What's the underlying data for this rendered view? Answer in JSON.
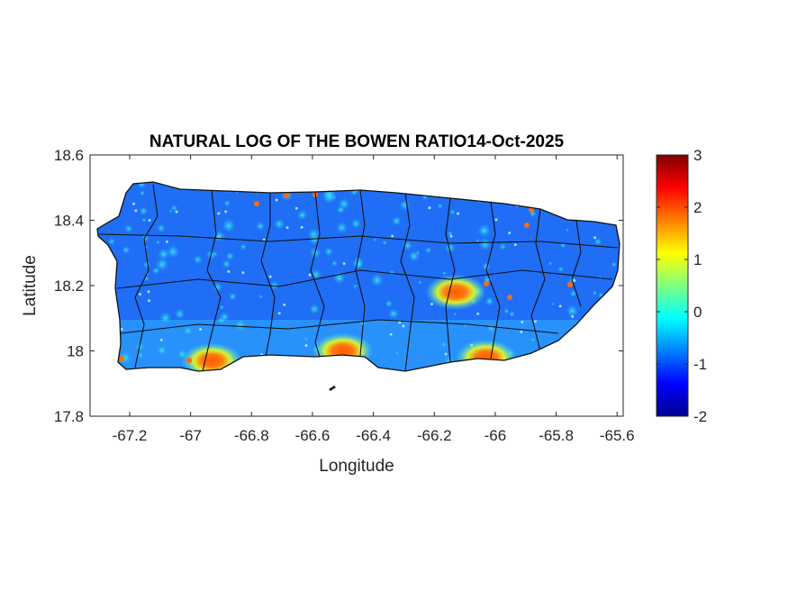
{
  "chart_data": {
    "type": "heatmap",
    "title": "NATURAL LOG OF THE BOWEN RATIO14-Oct-2025",
    "xlabel": "Longitude",
    "ylabel": "Latitude",
    "xlim": [
      -67.33,
      -65.58
    ],
    "ylim": [
      17.8,
      18.6
    ],
    "xticks": [
      "-67.2",
      "-67",
      "-66.8",
      "-66.6",
      "-66.4",
      "-66.2",
      "-66",
      "-65.8",
      "-65.6"
    ],
    "xtick_values": [
      -67.2,
      -67,
      -66.8,
      -66.6,
      -66.4,
      -66.2,
      -66,
      -65.8,
      -65.6
    ],
    "yticks": [
      "17.8",
      "18",
      "18.2",
      "18.4",
      "18.6"
    ],
    "ytick_values": [
      17.8,
      18.0,
      18.2,
      18.4,
      18.6
    ],
    "colorbar": {
      "colormap": "jet",
      "clim": [
        -2,
        3
      ],
      "ticks": [
        "-2",
        "-1",
        "0",
        "1",
        "2",
        "3"
      ],
      "tick_values": [
        -2,
        -1,
        0,
        1,
        2,
        3
      ]
    },
    "region": "Puerto Rico municipalities",
    "typical_value": -0.8,
    "hotspots": [
      {
        "lon": -66.93,
        "lat": 17.97,
        "value": 2.0
      },
      {
        "lon": -66.5,
        "lat": 18.0,
        "value": 2.0
      },
      {
        "lon": -66.13,
        "lat": 18.18,
        "value": 2.0
      },
      {
        "lon": -66.03,
        "lat": 17.98,
        "value": 1.8
      }
    ],
    "grid": false
  }
}
